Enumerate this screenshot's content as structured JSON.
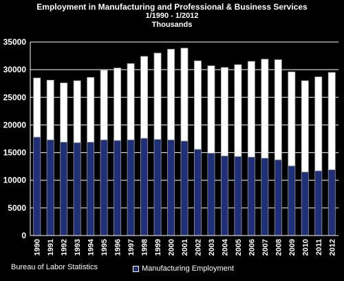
{
  "chart_data": {
    "type": "bar",
    "title": "Employment in Manufacturing and Professional & Business Services",
    "subtitle": "1/1990 - 1/2012",
    "units": "Thousands",
    "categories": [
      "1990",
      "1991",
      "1992",
      "1993",
      "1994",
      "1995",
      "1996",
      "1997",
      "1998",
      "1999",
      "2000",
      "2001",
      "2002",
      "2003",
      "2004",
      "2005",
      "2006",
      "2007",
      "2008",
      "2009",
      "2010",
      "2011",
      "2012"
    ],
    "series": [
      {
        "name": "Manufacturing Employment",
        "color": "#1f2f78",
        "values": [
          17800,
          17300,
          16900,
          16800,
          16900,
          17300,
          17200,
          17300,
          17600,
          17400,
          17300,
          17100,
          15600,
          14900,
          14400,
          14300,
          14200,
          14000,
          13700,
          12600,
          11500,
          11700,
          11900
        ]
      },
      {
        "name": "",
        "color": "#ffffff",
        "values": [
          10700,
          10800,
          10700,
          11200,
          11700,
          12600,
          13100,
          13800,
          14800,
          15600,
          16400,
          16800,
          16000,
          15800,
          16000,
          16600,
          17300,
          17900,
          18100,
          17000,
          16500,
          17000,
          17600
        ]
      }
    ],
    "ylim": [
      0,
      35000
    ],
    "yticks": [
      "0",
      "5000",
      "10000",
      "15000",
      "20000",
      "25000",
      "30000",
      "35000"
    ],
    "ytick_values": [
      0,
      5000,
      10000,
      15000,
      20000,
      25000,
      30000,
      35000
    ],
    "grid": true,
    "stacked": true,
    "legend_position": "bottom",
    "legend_label": "Manufacturing Employment",
    "source": "Bureau of Labor Statistics",
    "background_color": "#000000",
    "grid_color": "#ffffff"
  }
}
